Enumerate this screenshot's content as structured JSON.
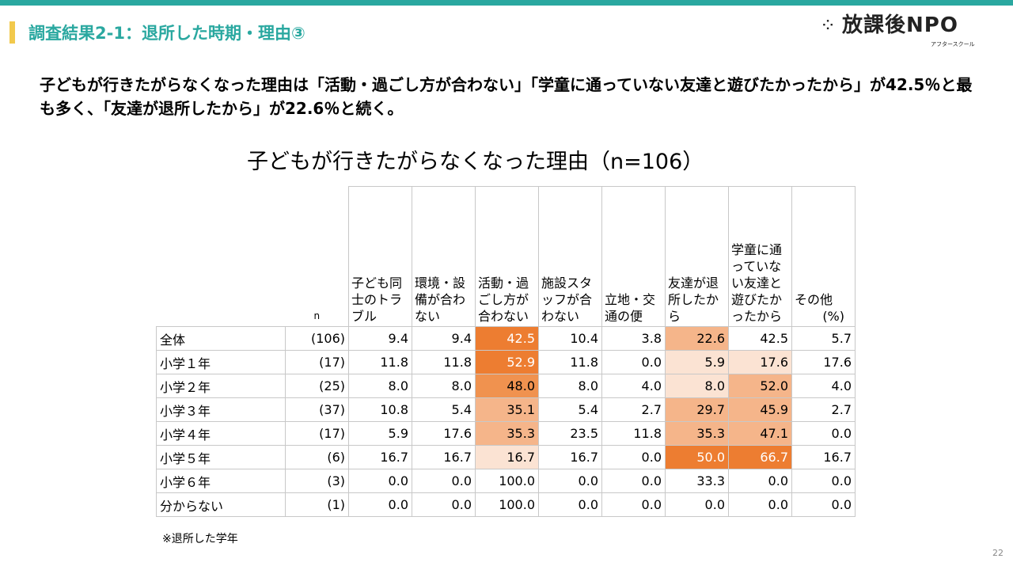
{
  "header": {
    "title": "調査結果2-1：退所した時期・理由③",
    "logo_text": "放課後NPO",
    "logo_sub": "アフタースクール"
  },
  "lead": "子どもが行きたがらなくなった理由は「活動・過ごし方が合わない」「学童に通っていない友達と遊びたかったから」が42.5％と最も多く、「友達が退所したから」が22.6％と続く。",
  "table": {
    "title": "子どもが行きたがらなくなった理由（n=106）",
    "n_header": "n",
    "unit": "(%)",
    "columns": [
      "子ども同士のトラブル",
      "環境・設備が合わない",
      "活動・過ごし方が合わない",
      "施設スタッフが合わない",
      "立地・交通の便",
      "友達が退所したから",
      "学童に通っていない友達と遊びたかったから",
      "その他"
    ],
    "rows": [
      {
        "label": "全体",
        "n": "(106)",
        "values": [
          "9.4",
          "9.4",
          "42.5",
          "10.4",
          "3.8",
          "22.6",
          "42.5",
          "5.7"
        ]
      },
      {
        "label": "小学１年",
        "n": "(17)",
        "values": [
          "11.8",
          "11.8",
          "52.9",
          "11.8",
          "0.0",
          "5.9",
          "17.6",
          "17.6"
        ]
      },
      {
        "label": "小学２年",
        "n": "(25)",
        "values": [
          "8.0",
          "8.0",
          "48.0",
          "8.0",
          "4.0",
          "8.0",
          "52.0",
          "4.0"
        ]
      },
      {
        "label": "小学３年",
        "n": "(37)",
        "values": [
          "10.8",
          "5.4",
          "35.1",
          "5.4",
          "2.7",
          "29.7",
          "45.9",
          "2.7"
        ]
      },
      {
        "label": "小学４年",
        "n": "(17)",
        "values": [
          "5.9",
          "17.6",
          "35.3",
          "23.5",
          "11.8",
          "35.3",
          "47.1",
          "0.0"
        ]
      },
      {
        "label": "小学５年",
        "n": "(6)",
        "values": [
          "16.7",
          "16.7",
          "16.7",
          "16.7",
          "0.0",
          "50.0",
          "66.7",
          "16.7"
        ]
      },
      {
        "label": "小学６年",
        "n": "(3)",
        "values": [
          "0.0",
          "0.0",
          "100.0",
          "0.0",
          "0.0",
          "33.3",
          "0.0",
          "0.0"
        ]
      },
      {
        "label": "分からない",
        "n": "(1)",
        "values": [
          "0.0",
          "0.0",
          "100.0",
          "0.0",
          "0.0",
          "0.0",
          "0.0",
          "0.0"
        ]
      }
    ],
    "highlight_colors": {
      "dark": "#ed7d31",
      "mid_dark": "#f0924f",
      "mid": "#f5b58a",
      "light": "#fbe3d3"
    },
    "highlights": [
      [
        null,
        null,
        "dark",
        null,
        null,
        "mid",
        null,
        null
      ],
      [
        null,
        null,
        "dark",
        null,
        null,
        "light",
        "light",
        null
      ],
      [
        null,
        null,
        "mid_dark",
        null,
        null,
        "light",
        "mid",
        null
      ],
      [
        null,
        null,
        "mid",
        null,
        null,
        "mid",
        "mid",
        null
      ],
      [
        null,
        null,
        "mid",
        null,
        null,
        "mid",
        "mid",
        null
      ],
      [
        null,
        null,
        "light",
        null,
        null,
        "dark",
        "dark",
        null
      ],
      [
        null,
        null,
        null,
        null,
        null,
        null,
        null,
        null
      ],
      [
        null,
        null,
        null,
        null,
        null,
        null,
        null,
        null
      ]
    ],
    "note": "※退所した学年"
  },
  "page_number": "22"
}
